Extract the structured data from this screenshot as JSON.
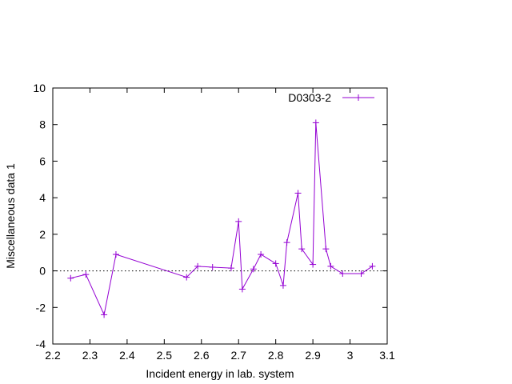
{
  "chart_data": {
    "type": "line",
    "xlabel": "Incident energy in lab. system",
    "ylabel": "Miscellaneous data 1",
    "xlim": [
      2.2,
      3.1
    ],
    "ylim": [
      -4,
      10
    ],
    "x_ticks": [
      "2.2",
      "2.3",
      "2.4",
      "2.5",
      "2.6",
      "2.7",
      "2.8",
      "2.9",
      "3",
      "3.1"
    ],
    "y_ticks": [
      "-4",
      "-2",
      "0",
      "2",
      "4",
      "6",
      "8",
      "10"
    ],
    "grid": false,
    "zero_line": true,
    "legend_position": "top-right",
    "series": [
      {
        "name": "D0303-2",
        "color": "#9400d3",
        "marker": "plus",
        "x": [
          2.248,
          2.289,
          2.338,
          2.37,
          2.56,
          2.59,
          2.63,
          2.68,
          2.7,
          2.71,
          2.74,
          2.76,
          2.8,
          2.82,
          2.83,
          2.86,
          2.87,
          2.9,
          2.908,
          2.935,
          2.948,
          2.98,
          3.03,
          3.06
        ],
        "y": [
          -0.4,
          -0.2,
          -2.4,
          0.9,
          -0.35,
          0.25,
          0.2,
          0.15,
          2.7,
          -1.0,
          0.1,
          0.9,
          0.4,
          -0.8,
          1.55,
          4.25,
          1.2,
          0.35,
          8.1,
          1.2,
          0.25,
          -0.15,
          -0.15,
          0.25
        ]
      }
    ]
  }
}
